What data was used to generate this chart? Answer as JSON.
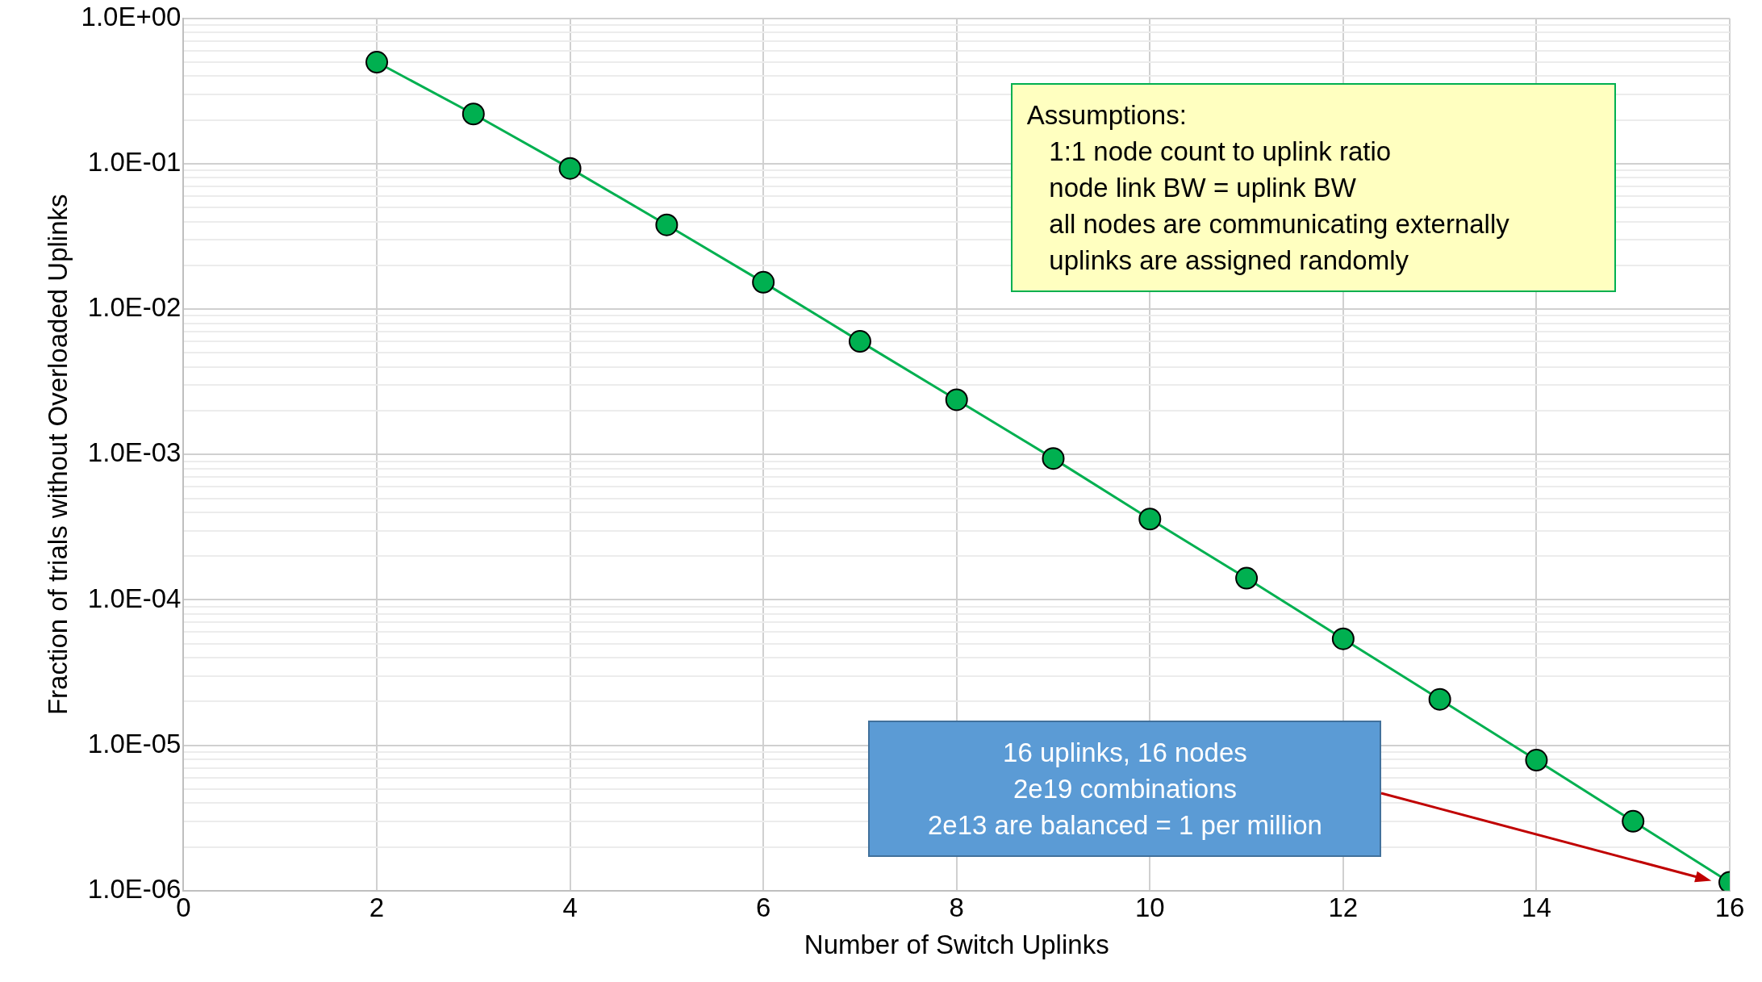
{
  "chart_data": {
    "type": "line",
    "xlabel": "Number of Switch Uplinks",
    "ylabel": "Fraction of trials without Overloaded Uplinks",
    "x": [
      2,
      3,
      4,
      5,
      6,
      7,
      8,
      9,
      10,
      11,
      12,
      13,
      14,
      15,
      16
    ],
    "series": [
      {
        "color": "#00b050",
        "values": [
          0.5,
          0.22,
          0.093,
          0.038,
          0.0153,
          0.006,
          0.00238,
          0.00094,
          0.00036,
          0.000141,
          5.4e-05,
          2.07e-05,
          7.9e-06,
          3e-06,
          1.14e-06
        ]
      }
    ],
    "xlim": [
      0,
      16
    ],
    "xticks": [
      0,
      2,
      4,
      6,
      8,
      10,
      12,
      14,
      16
    ],
    "ylim": [
      1e-06,
      1
    ],
    "yticks": [
      {
        "value": 1e-06,
        "label": "1.0E-06"
      },
      {
        "value": 2e-06,
        "label": null
      },
      {
        "value": 3e-06,
        "label": null
      },
      {
        "value": 4e-06,
        "label": null
      },
      {
        "value": 5e-06,
        "label": null
      },
      {
        "value": 6e-06,
        "label": null
      },
      {
        "value": 7e-06,
        "label": null
      },
      {
        "value": 8e-06,
        "label": null
      },
      {
        "value": 9e-06,
        "label": null
      },
      {
        "value": 1e-05,
        "label": "1.0E-05"
      },
      {
        "value": 2e-05,
        "label": null
      },
      {
        "value": 3e-05,
        "label": null
      },
      {
        "value": 4e-05,
        "label": null
      },
      {
        "value": 5e-05,
        "label": null
      },
      {
        "value": 6e-05,
        "label": null
      },
      {
        "value": 7e-05,
        "label": null
      },
      {
        "value": 8e-05,
        "label": null
      },
      {
        "value": 9e-05,
        "label": null
      },
      {
        "value": 0.0001,
        "label": "1.0E-04"
      },
      {
        "value": 0.0002,
        "label": null
      },
      {
        "value": 0.0003,
        "label": null
      },
      {
        "value": 0.0004,
        "label": null
      },
      {
        "value": 0.0005,
        "label": null
      },
      {
        "value": 0.0006,
        "label": null
      },
      {
        "value": 0.0007,
        "label": null
      },
      {
        "value": 0.0008,
        "label": null
      },
      {
        "value": 0.0009,
        "label": null
      },
      {
        "value": 0.001,
        "label": "1.0E-03"
      },
      {
        "value": 0.002,
        "label": null
      },
      {
        "value": 0.003,
        "label": null
      },
      {
        "value": 0.004,
        "label": null
      },
      {
        "value": 0.005,
        "label": null
      },
      {
        "value": 0.006,
        "label": null
      },
      {
        "value": 0.007,
        "label": null
      },
      {
        "value": 0.008,
        "label": null
      },
      {
        "value": 0.009,
        "label": null
      },
      {
        "value": 0.01,
        "label": "1.0E-02"
      },
      {
        "value": 0.02,
        "label": null
      },
      {
        "value": 0.03,
        "label": null
      },
      {
        "value": 0.04,
        "label": null
      },
      {
        "value": 0.05,
        "label": null
      },
      {
        "value": 0.06,
        "label": null
      },
      {
        "value": 0.07,
        "label": null
      },
      {
        "value": 0.08,
        "label": null
      },
      {
        "value": 0.09,
        "label": null
      },
      {
        "value": 0.1,
        "label": "1.0E-01"
      },
      {
        "value": 0.2,
        "label": null
      },
      {
        "value": 0.3,
        "label": null
      },
      {
        "value": 0.4,
        "label": null
      },
      {
        "value": 0.5,
        "label": null
      },
      {
        "value": 0.6,
        "label": null
      },
      {
        "value": 0.7,
        "label": null
      },
      {
        "value": 0.8,
        "label": null
      },
      {
        "value": 0.9,
        "label": null
      },
      {
        "value": 1,
        "label": "1.0E+00"
      }
    ],
    "log": "y",
    "grid": true,
    "legend": false,
    "marker": "circle",
    "line_style": "solid",
    "annotations": [
      "Assumptions:\n   1:1 node count to uplink ratio\n   node link BW = uplink BW\n   all nodes are communicating externally\n   uplinks are assigned randomly",
      "16 uplinks, 16 nodes\n2e19 combinations\n2e13 are balanced = 1 per million"
    ]
  }
}
